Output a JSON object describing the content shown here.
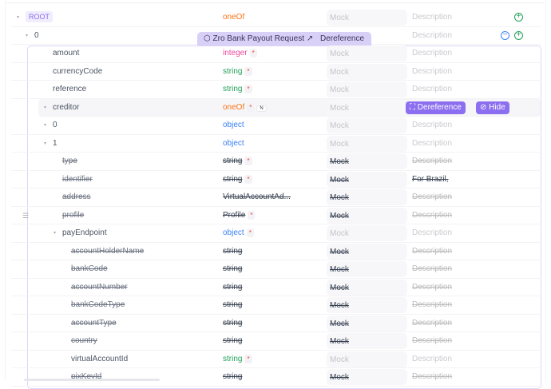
{
  "ref_tag": {
    "title": "Zro Bank Payout Request",
    "action": "Dereference"
  },
  "creditor_actions": {
    "dereference": "Dereference",
    "hide": "Hide"
  },
  "placeholders": {
    "mock": "Mock",
    "description": "Description"
  },
  "colors": {
    "oneOf": "#f97316",
    "integer": "#ec4899",
    "string": "#22a05a",
    "object": "#3b82f6",
    "ref": "#374151",
    "accent": "#8b6ff0"
  },
  "rows": [
    {
      "name": "ROOT",
      "type": "oneOf",
      "kind": "oneOf",
      "indent": 0,
      "toggle": true,
      "root": true,
      "add": true
    },
    {
      "name": "0",
      "type": "",
      "kind": "",
      "indent": 1,
      "toggle": true,
      "add": true,
      "remove": true
    },
    {
      "name": "amount",
      "type": "integer",
      "kind": "integer",
      "indent": 2,
      "required": true
    },
    {
      "name": "currencyCode",
      "type": "string",
      "kind": "string",
      "indent": 2,
      "required": true
    },
    {
      "name": "reference",
      "type": "string",
      "kind": "string",
      "indent": 2,
      "required": true
    },
    {
      "name": "creditor",
      "type": "oneOf",
      "kind": "oneOf",
      "indent": 2,
      "toggle": true,
      "required": true,
      "nullable": "N",
      "highlight": true
    },
    {
      "name": "0",
      "type": "object",
      "kind": "object",
      "indent": 3,
      "toggle": true
    },
    {
      "name": "1",
      "type": "object",
      "kind": "object",
      "indent": 3,
      "toggle": true
    },
    {
      "name": "type",
      "type": "string",
      "kind": "ref",
      "indent": 4,
      "required": true,
      "strike": true
    },
    {
      "name": "identifier",
      "type": "string",
      "kind": "ref",
      "indent": 4,
      "required": true,
      "strike": true,
      "description": "For Brazil,"
    },
    {
      "name": "address",
      "type": "VirtualAccountAd...",
      "kind": "ref",
      "indent": 4,
      "strike": true
    },
    {
      "name": "profile",
      "type": "Profile",
      "kind": "ref",
      "indent": 4,
      "required": true,
      "strike": true
    },
    {
      "name": "payEndpoint",
      "type": "object",
      "kind": "object",
      "indent": 4,
      "toggle": true,
      "required": true
    },
    {
      "name": "accountHolderName",
      "type": "string",
      "kind": "ref",
      "indent": 5,
      "strike": true
    },
    {
      "name": "bankCode",
      "type": "string",
      "kind": "ref",
      "indent": 5,
      "strike": true
    },
    {
      "name": "accountNumber",
      "type": "string",
      "kind": "ref",
      "indent": 5,
      "strike": true
    },
    {
      "name": "bankCodeType",
      "type": "string",
      "kind": "ref",
      "indent": 5,
      "strike": true
    },
    {
      "name": "accountType",
      "type": "string",
      "kind": "ref",
      "indent": 5,
      "strike": true
    },
    {
      "name": "country",
      "type": "string",
      "kind": "ref",
      "indent": 5,
      "strike": true
    },
    {
      "name": "virtualAccountId",
      "type": "string",
      "kind": "string",
      "indent": 5,
      "required": true
    },
    {
      "name": "pixKeyId",
      "type": "string",
      "kind": "ref",
      "indent": 5,
      "strike": true
    }
  ],
  "required_mark": "*"
}
